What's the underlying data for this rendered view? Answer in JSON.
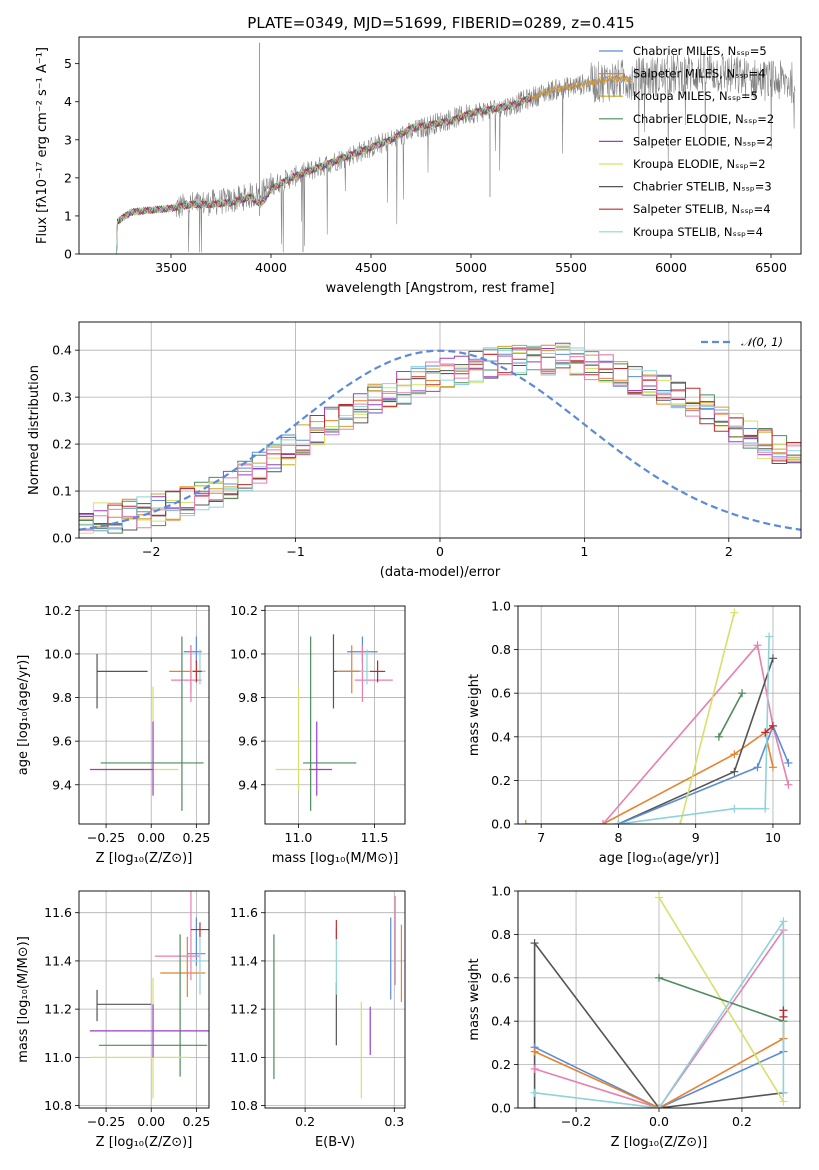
{
  "figure_title": "PLATE=0349, MJD=51699, FIBERID=0289, z=0.415",
  "colors": {
    "chabrier_miles": "#5b8bd9",
    "salpeter_miles": "#e8822e",
    "kroupa_miles": "#c9a42f",
    "chabrier_elodie": "#4e8a5c",
    "salpeter_elodie": "#9b3fc4",
    "kroupa_elodie": "#d6e06b",
    "chabrier_stelib": "#555555",
    "salpeter_stelib": "#c42a2a",
    "kroupa_stelib": "#8fd3d8",
    "pink": "#e87fb0",
    "data": "#808080",
    "normal": "#5b8bd9"
  },
  "chart_data": [
    {
      "type": "line",
      "xlabel": "wavelength [Angstrom, rest frame]",
      "ylabel": "Flux [fλ10⁻¹⁷ erg cm⁻² s⁻¹ A⁻¹]",
      "xlim": [
        3040,
        6650
      ],
      "ylim": [
        0,
        5.7
      ],
      "xticks": [
        3500,
        4000,
        4500,
        5000,
        5500,
        6000,
        6500
      ],
      "yticks": [
        0,
        1,
        2,
        3,
        4,
        5
      ],
      "grid": false,
      "legend_position": "top-right",
      "legend": [
        "Chabrier MILES, Nₛₛₚ=5",
        "Salpeter MILES, Nₛₛₚ=4",
        "Kroupa MILES, Nₛₛₚ=5",
        "Chabrier ELODIE, Nₛₛₚ=2",
        "Salpeter ELODIE, Nₛₛₚ=2",
        "Kroupa ELODIE, Nₛₛₚ=2",
        "Chabrier STELIB, Nₛₛₚ=3",
        "Salpeter STELIB, Nₛₛₚ=4",
        "Kroupa STELIB, Nₛₛₚ=4"
      ],
      "continuum": {
        "x": [
          3220,
          3230,
          3300,
          3400,
          3500,
          3600,
          3700,
          3800,
          3900,
          3950,
          4000,
          4100,
          4200,
          4300,
          4400,
          4500,
          4600,
          4700,
          4800,
          4900,
          5000,
          5100,
          5200,
          5300,
          5400,
          5500,
          5600,
          5700,
          5800
        ],
        "y": [
          0,
          0.85,
          1.1,
          1.15,
          1.2,
          1.3,
          1.3,
          1.35,
          1.5,
          1.3,
          1.7,
          2.0,
          2.2,
          2.4,
          2.6,
          2.8,
          3.0,
          3.3,
          3.4,
          3.5,
          3.7,
          3.8,
          3.9,
          4.1,
          4.3,
          4.4,
          4.5,
          4.6,
          4.6
        ]
      },
      "data_spectrum_range": [
        3520,
        6620
      ],
      "data_spectrum_level": {
        "x": [
          3520,
          3600,
          3800,
          3950,
          4000,
          4200,
          4400,
          4600,
          4800,
          5000,
          5200,
          5400,
          5600,
          5800,
          6000,
          6200,
          6400,
          6620
        ],
        "y": [
          1.2,
          1.3,
          1.4,
          1.6,
          1.8,
          2.2,
          2.6,
          3.0,
          3.4,
          3.7,
          3.9,
          4.3,
          4.5,
          4.6,
          4.7,
          4.8,
          4.6,
          4.5
        ]
      }
    },
    {
      "type": "bar",
      "xlabel": "(data-model)/error",
      "ylabel": "Normed distribution",
      "xlim": [
        -2.5,
        2.5
      ],
      "ylim": [
        0,
        0.46
      ],
      "xticks": [
        -2,
        -1,
        0,
        1,
        2
      ],
      "yticks": [
        0.0,
        0.1,
        0.2,
        0.3,
        0.4
      ],
      "grid": true,
      "legend_position": "top-right",
      "legend": [
        "𝒩(0, 1)"
      ],
      "bin_width": 0.1,
      "bin_start": -2.5,
      "envelope": [
        0.035,
        0.04,
        0.045,
        0.05,
        0.055,
        0.06,
        0.07,
        0.08,
        0.09,
        0.1,
        0.115,
        0.13,
        0.15,
        0.17,
        0.19,
        0.21,
        0.23,
        0.25,
        0.265,
        0.28,
        0.295,
        0.31,
        0.32,
        0.335,
        0.345,
        0.355,
        0.36,
        0.365,
        0.37,
        0.375,
        0.378,
        0.38,
        0.38,
        0.38,
        0.375,
        0.37,
        0.36,
        0.35,
        0.34,
        0.33,
        0.315,
        0.3,
        0.285,
        0.27,
        0.255,
        0.24,
        0.22,
        0.2,
        0.185,
        0.17,
        0.155,
        0.14,
        0.125,
        0.11,
        0.1,
        0.09,
        0.08,
        0.07,
        0.06,
        0.05
      ]
    },
    {
      "type": "scatter",
      "xlabel": "Z [log₁₀(Z/Z⊙)]",
      "ylabel": "age  [log₁₀(age/yr)]",
      "xlim": [
        -0.4,
        0.32
      ],
      "ylim": [
        9.22,
        10.22
      ],
      "xticks": [
        -0.25,
        0.0,
        0.25
      ],
      "yticks": [
        9.4,
        9.6,
        9.8,
        10.0,
        10.2
      ],
      "grid": true,
      "points": [
        {
          "s": "chabrier_stelib",
          "x": -0.3,
          "xerr": [
            0.0,
            0.28
          ],
          "y": 9.92,
          "yerr": [
            0.17,
            0.08
          ]
        },
        {
          "s": "salpeter_miles",
          "x": 0.22,
          "xerr": [
            0.12,
            0.08
          ],
          "y": 9.92,
          "yerr": [
            0.1,
            0.12
          ]
        },
        {
          "s": "chabrier_miles",
          "x": 0.25,
          "xerr": [
            0.07,
            0.03
          ],
          "y": 10.01,
          "yerr": [
            0.05,
            0.07
          ]
        },
        {
          "s": "pink",
          "x": 0.22,
          "xerr": [
            0.11,
            0.06
          ],
          "y": 9.88,
          "yerr": [
            0.1,
            0.16
          ]
        },
        {
          "s": "kroupa_stelib",
          "x": 0.27,
          "xerr": [
            0.05,
            0.03
          ],
          "y": 9.92,
          "yerr": [
            0.06,
            0.1
          ]
        },
        {
          "s": "chabrier_elodie",
          "x": 0.17,
          "xerr": [
            0.45,
            0.12
          ],
          "y": 9.5,
          "yerr": [
            0.22,
            0.58
          ]
        },
        {
          "s": "kroupa_elodie",
          "x": 0.01,
          "xerr": [
            0.3,
            0.14
          ],
          "y": 9.47,
          "yerr": [
            0.1,
            0.38
          ]
        },
        {
          "s": "salpeter_elodie",
          "x": 0.01,
          "xerr": [
            0.35,
            0.0
          ],
          "y": 9.47,
          "yerr": [
            0.12,
            0.22
          ]
        },
        {
          "s": "salpeter_stelib",
          "x": 0.25,
          "xerr": [
            0.02,
            0.03
          ],
          "y": 9.92,
          "yerr": [
            0.05,
            0.05
          ]
        }
      ]
    },
    {
      "type": "scatter",
      "xlabel": "mass [log₁₀(M/M⊙)]",
      "ylabel": "",
      "xlim": [
        10.78,
        11.7
      ],
      "ylim": [
        9.22,
        10.22
      ],
      "xticks": [
        11.0,
        11.5
      ],
      "yticks": [
        9.4,
        9.6,
        9.8,
        10.0,
        10.2
      ],
      "grid": true,
      "points": [
        {
          "s": "chabrier_stelib",
          "x": 11.23,
          "xerr": [
            0.0,
            0.2
          ],
          "y": 9.92,
          "yerr": [
            0.17,
            0.17
          ]
        },
        {
          "s": "salpeter_miles",
          "x": 11.35,
          "xerr": [
            0.1,
            0.05
          ],
          "y": 9.92,
          "yerr": [
            0.1,
            0.12
          ]
        },
        {
          "s": "chabrier_miles",
          "x": 11.42,
          "xerr": [
            0.1,
            0.1
          ],
          "y": 10.01,
          "yerr": [
            0.05,
            0.07
          ]
        },
        {
          "s": "pink",
          "x": 11.42,
          "xerr": [
            0.05,
            0.2
          ],
          "y": 9.88,
          "yerr": [
            0.1,
            0.16
          ]
        },
        {
          "s": "kroupa_stelib",
          "x": 11.45,
          "xerr": [
            0.05,
            0.05
          ],
          "y": 9.92,
          "yerr": [
            0.06,
            0.1
          ]
        },
        {
          "s": "chabrier_elodie",
          "x": 11.08,
          "xerr": [
            0.05,
            0.3
          ],
          "y": 9.5,
          "yerr": [
            0.22,
            0.58
          ]
        },
        {
          "s": "kroupa_elodie",
          "x": 11.0,
          "xerr": [
            0.15,
            0.15
          ],
          "y": 9.47,
          "yerr": [
            0.1,
            0.38
          ]
        },
        {
          "s": "salpeter_elodie",
          "x": 11.12,
          "xerr": [
            0.05,
            0.1
          ],
          "y": 9.47,
          "yerr": [
            0.12,
            0.22
          ]
        },
        {
          "s": "salpeter_stelib",
          "x": 11.52,
          "xerr": [
            0.05,
            0.05
          ],
          "y": 9.92,
          "yerr": [
            0.05,
            0.05
          ]
        }
      ]
    },
    {
      "type": "line",
      "xlabel": "age  [log₁₀(age/yr)]",
      "ylabel": "mass weight",
      "xlim": [
        6.7,
        10.35
      ],
      "ylim": [
        0,
        1.0
      ],
      "xticks": [
        7,
        8,
        9,
        10
      ],
      "yticks": [
        0.0,
        0.2,
        0.4,
        0.6,
        0.8,
        1.0
      ],
      "grid": true,
      "series": [
        {
          "s": "salpeter_miles",
          "x": [
            6.8,
            7.8,
            9.5,
            9.9,
            10.0
          ],
          "y": [
            0.0,
            0.0,
            0.32,
            0.42,
            0.26
          ]
        },
        {
          "s": "pink",
          "x": [
            7.8,
            9.8,
            10.0,
            10.2
          ],
          "y": [
            0.0,
            0.82,
            0.45,
            0.18
          ]
        },
        {
          "s": "chabrier_stelib",
          "x": [
            8.0,
            9.5,
            10.0
          ],
          "y": [
            0.0,
            0.24,
            0.76
          ]
        },
        {
          "s": "chabrier_miles",
          "x": [
            8.0,
            9.8,
            10.0,
            10.2
          ],
          "y": [
            0.0,
            0.26,
            0.45,
            0.28
          ]
        },
        {
          "s": "kroupa_elodie",
          "x": [
            8.8,
            9.5
          ],
          "y": [
            0.0,
            0.97
          ]
        },
        {
          "s": "chabrier_elodie",
          "x": [
            9.3,
            9.6
          ],
          "y": [
            0.4,
            0.6
          ]
        },
        {
          "s": "kroupa_stelib",
          "x": [
            8.0,
            9.5,
            9.9,
            9.95
          ],
          "y": [
            0.0,
            0.07,
            0.07,
            0.86
          ]
        },
        {
          "s": "salpeter_stelib",
          "x": [
            9.9,
            10.0
          ],
          "y": [
            0.42,
            0.45
          ]
        }
      ]
    },
    {
      "type": "scatter",
      "xlabel": "Z [log₁₀(Z/Z⊙)]",
      "ylabel": "mass [log₁₀(M/M⊙)]",
      "xlim": [
        -0.4,
        0.32
      ],
      "ylim": [
        10.79,
        11.69
      ],
      "xticks": [
        -0.25,
        0.0,
        0.25
      ],
      "yticks": [
        10.8,
        11.0,
        11.2,
        11.4,
        11.6
      ],
      "grid": true,
      "points": [
        {
          "s": "chabrier_stelib",
          "x": -0.3,
          "xerr": [
            0.0,
            0.3
          ],
          "y": 11.22,
          "yerr": [
            0.07,
            0.06
          ]
        },
        {
          "s": "salpeter_miles",
          "x": 0.2,
          "xerr": [
            0.15,
            0.1
          ],
          "y": 11.35,
          "yerr": [
            0.1,
            0.15
          ]
        },
        {
          "s": "chabrier_miles",
          "x": 0.25,
          "xerr": [
            0.05,
            0.05
          ],
          "y": 11.43,
          "yerr": [
            0.05,
            0.15
          ]
        },
        {
          "s": "pink",
          "x": 0.22,
          "xerr": [
            0.2,
            0.05
          ],
          "y": 11.42,
          "yerr": [
            0.1,
            0.27
          ]
        },
        {
          "s": "kroupa_stelib",
          "x": 0.27,
          "xerr": [
            0.05,
            0.03
          ],
          "y": 11.4,
          "yerr": [
            0.14,
            0.14
          ]
        },
        {
          "s": "chabrier_elodie",
          "x": 0.16,
          "xerr": [
            0.45,
            0.15
          ],
          "y": 11.05,
          "yerr": [
            0.13,
            0.46
          ]
        },
        {
          "s": "kroupa_elodie",
          "x": 0.01,
          "xerr": [
            0.35,
            0.2
          ],
          "y": 11.0,
          "yerr": [
            0.17,
            0.33
          ]
        },
        {
          "s": "salpeter_elodie",
          "x": 0.01,
          "xerr": [
            0.35,
            0.35
          ],
          "y": 11.11,
          "yerr": [
            0.11,
            0.11
          ]
        },
        {
          "s": "salpeter_stelib",
          "x": 0.27,
          "xerr": [
            0.05,
            0.05
          ],
          "y": 11.53,
          "yerr": [
            0.03,
            0.03
          ]
        }
      ]
    },
    {
      "type": "scatter",
      "xlabel": "E(B-V)",
      "ylabel": "",
      "xlim": [
        0.155,
        0.312
      ],
      "ylim": [
        10.79,
        11.69
      ],
      "xticks": [
        0.2,
        0.3
      ],
      "yticks": [
        10.8,
        11.0,
        11.2,
        11.4,
        11.6
      ],
      "grid": true,
      "points": [
        {
          "s": "chabrier_elodie",
          "x": 0.165,
          "y": 11.21,
          "yerr": [
            0.3,
            0.3
          ]
        },
        {
          "s": "chabrier_stelib",
          "x": 0.235,
          "y": 11.18,
          "yerr": [
            0.13,
            0.13
          ]
        },
        {
          "s": "kroupa_stelib",
          "x": 0.235,
          "y": 11.4,
          "yerr": [
            0.14,
            0.14
          ]
        },
        {
          "s": "salpeter_stelib",
          "x": 0.235,
          "y": 11.53,
          "yerr": [
            0.04,
            0.04
          ]
        },
        {
          "s": "kroupa_elodie",
          "x": 0.263,
          "y": 11.0,
          "yerr": [
            0.17,
            0.23
          ]
        },
        {
          "s": "salpeter_elodie",
          "x": 0.273,
          "y": 11.11,
          "yerr": [
            0.1,
            0.1
          ]
        },
        {
          "s": "chabrier_miles",
          "x": 0.296,
          "y": 11.43,
          "yerr": [
            0.19,
            0.15
          ]
        },
        {
          "s": "pink",
          "x": 0.301,
          "y": 11.45,
          "yerr": [
            0.15,
            0.22
          ]
        },
        {
          "s": "salpeter_miles",
          "x": 0.308,
          "y": 11.4,
          "yerr": [
            0.17,
            0.15
          ]
        }
      ]
    },
    {
      "type": "line",
      "xlabel": "Z [log₁₀(Z/Z⊙)]",
      "ylabel": "mass weight",
      "xlim": [
        -0.34,
        0.34
      ],
      "ylim": [
        0,
        1.0
      ],
      "xticks": [
        -0.2,
        0.0,
        0.2
      ],
      "yticks": [
        0.0,
        0.2,
        0.4,
        0.6,
        0.8,
        1.0
      ],
      "grid": true,
      "series": [
        {
          "s": "chabrier_stelib",
          "x": [
            -0.3,
            -0.3,
            0.0,
            0.3
          ],
          "y": [
            0.0,
            0.76,
            0.0,
            0.07
          ]
        },
        {
          "s": "pink",
          "x": [
            -0.3,
            0.0,
            0.3
          ],
          "y": [
            0.18,
            0.0,
            0.82
          ]
        },
        {
          "s": "chabrier_miles",
          "x": [
            -0.3,
            0.0,
            0.3,
            0.3
          ],
          "y": [
            0.28,
            0.0,
            0.26,
            0.45
          ]
        },
        {
          "s": "salpeter_miles",
          "x": [
            -0.3,
            0.0,
            0.3,
            0.3
          ],
          "y": [
            0.26,
            0.0,
            0.32,
            0.42
          ]
        },
        {
          "s": "kroupa_elodie",
          "x": [
            0.0,
            0.3
          ],
          "y": [
            0.97,
            0.03
          ]
        },
        {
          "s": "chabrier_elodie",
          "x": [
            0.0,
            0.3
          ],
          "y": [
            0.6,
            0.4
          ]
        },
        {
          "s": "kroupa_stelib",
          "x": [
            -0.3,
            0.0,
            0.3,
            0.3
          ],
          "y": [
            0.07,
            0.0,
            0.86,
            0.07
          ]
        },
        {
          "s": "salpeter_stelib",
          "x": [
            0.3,
            0.3
          ],
          "y": [
            0.42,
            0.45
          ]
        }
      ]
    }
  ]
}
